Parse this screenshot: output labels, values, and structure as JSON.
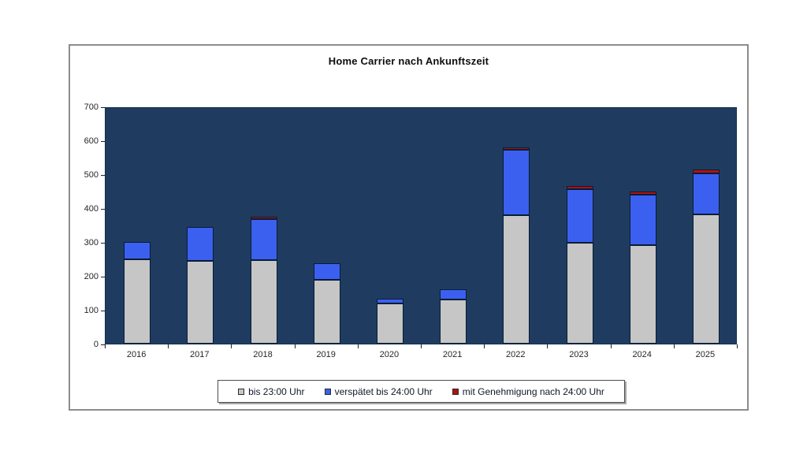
{
  "page": {
    "background": "#ffffff"
  },
  "chart_data": {
    "type": "bar",
    "stacked": true,
    "title": "Home Carrier nach Ankunftszeit",
    "categories": [
      "2016",
      "2017",
      "2018",
      "2019",
      "2020",
      "2021",
      "2022",
      "2023",
      "2024",
      "2025"
    ],
    "series": [
      {
        "name": "bis 23:00 Uhr",
        "color": "#c6c6c6",
        "values": [
          248,
          245,
          247,
          188,
          119,
          131,
          379,
          297,
          290,
          382
        ]
      },
      {
        "name": "verspätet bis 24:00 Uhr",
        "color": "#3b60f0",
        "values": [
          52,
          100,
          120,
          48,
          13,
          30,
          193,
          158,
          148,
          121
        ]
      },
      {
        "name": "mit Genehmigung nach 24:00 Uhr",
        "color": "#b01310",
        "values": [
          0,
          0,
          8,
          0,
          0,
          0,
          8,
          10,
          10,
          12
        ]
      }
    ],
    "totals": [
      300,
      345,
      375,
      236,
      132,
      161,
      580,
      465,
      448,
      515
    ],
    "xlabel": "",
    "ylabel": "",
    "ylim": [
      0,
      700
    ],
    "yticks": [
      0,
      100,
      200,
      300,
      400,
      500,
      600,
      700
    ],
    "grid": false,
    "legend_position": "bottom",
    "plot_background": "#1f3c60",
    "bar_border_color": "#081c33",
    "frame_border_color": "#8c8c8c"
  }
}
